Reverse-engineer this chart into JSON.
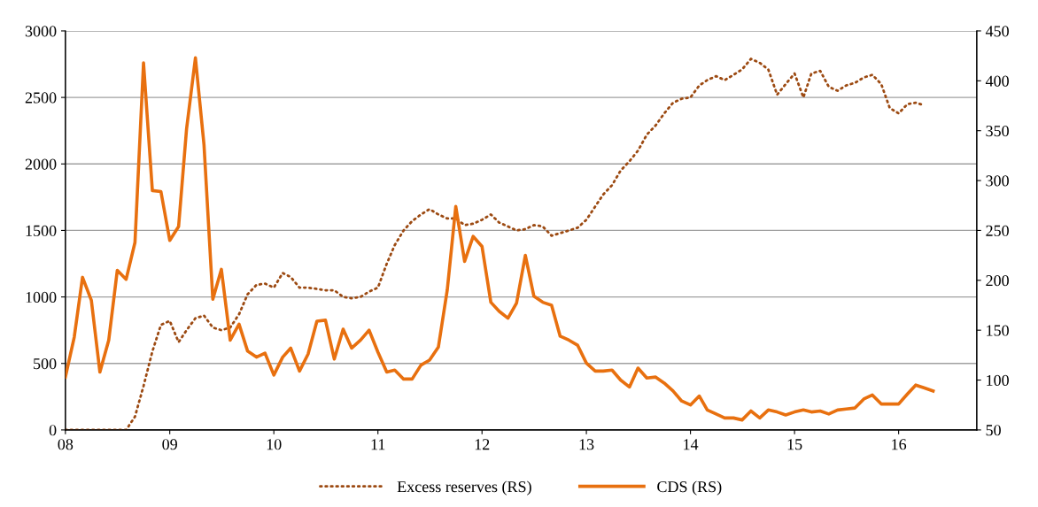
{
  "chart_data": {
    "type": "line",
    "x": [
      "2008-01",
      "2008-02",
      "2008-03",
      "2008-04",
      "2008-05",
      "2008-06",
      "2008-07",
      "2008-08",
      "2008-09",
      "2008-10",
      "2008-11",
      "2008-12",
      "2009-01",
      "2009-02",
      "2009-03",
      "2009-04",
      "2009-05",
      "2009-06",
      "2009-07",
      "2009-08",
      "2009-09",
      "2009-10",
      "2009-11",
      "2009-12",
      "2010-01",
      "2010-02",
      "2010-03",
      "2010-04",
      "2010-05",
      "2010-06",
      "2010-07",
      "2010-08",
      "2010-09",
      "2010-10",
      "2010-11",
      "2010-12",
      "2011-01",
      "2011-02",
      "2011-03",
      "2011-04",
      "2011-05",
      "2011-06",
      "2011-07",
      "2011-08",
      "2011-09",
      "2011-10",
      "2011-11",
      "2011-12",
      "2012-01",
      "2012-02",
      "2012-03",
      "2012-04",
      "2012-05",
      "2012-06",
      "2012-07",
      "2012-08",
      "2012-09",
      "2012-10",
      "2012-11",
      "2012-12",
      "2013-01",
      "2013-02",
      "2013-03",
      "2013-04",
      "2013-05",
      "2013-06",
      "2013-07",
      "2013-08",
      "2013-09",
      "2013-10",
      "2013-11",
      "2013-12",
      "2014-01",
      "2014-02",
      "2014-03",
      "2014-04",
      "2014-05",
      "2014-06",
      "2014-07",
      "2014-08",
      "2014-09",
      "2014-10",
      "2014-11",
      "2014-12",
      "2015-01",
      "2015-02",
      "2015-03",
      "2015-04",
      "2015-05",
      "2015-06",
      "2015-07",
      "2015-08",
      "2015-09",
      "2015-10",
      "2015-11",
      "2015-12",
      "2016-01",
      "2016-02",
      "2016-03",
      "2016-04",
      "2016-05"
    ],
    "series": [
      {
        "name": "Excess reserves (RS)",
        "color": "#9c4a12",
        "line_style": "dotted",
        "values": [
          0,
          0,
          0,
          0,
          0,
          0,
          0,
          0,
          100,
          330,
          590,
          790,
          820,
          660,
          750,
          840,
          860,
          770,
          750,
          770,
          870,
          1020,
          1090,
          1100,
          1070,
          1180,
          1150,
          1070,
          1070,
          1060,
          1050,
          1050,
          1000,
          990,
          1000,
          1040,
          1070,
          1250,
          1390,
          1500,
          1570,
          1620,
          1660,
          1620,
          1590,
          1590,
          1540,
          1550,
          1580,
          1620,
          1560,
          1530,
          1500,
          1510,
          1540,
          1530,
          1460,
          1480,
          1500,
          1520,
          1580,
          1680,
          1770,
          1840,
          1950,
          2020,
          2100,
          2220,
          2290,
          2380,
          2460,
          2490,
          2500,
          2590,
          2630,
          2660,
          2630,
          2670,
          2710,
          2790,
          2760,
          2710,
          2520,
          2600,
          2680,
          2500,
          2680,
          2700,
          2580,
          2550,
          2590,
          2610,
          2650,
          2670,
          2600,
          2420,
          2380,
          2450,
          2460,
          2440,
          null
        ]
      },
      {
        "name": "CDS (RS)",
        "color": "#e8700f",
        "line_style": "solid",
        "axis": "y2",
        "values": [
          103,
          143,
          203,
          180,
          108,
          140,
          210,
          201,
          238,
          418,
          290,
          289,
          240,
          254,
          352,
          423,
          336,
          181,
          211,
          140,
          156,
          129,
          123,
          127,
          105,
          123,
          132,
          109,
          126,
          159,
          160,
          121,
          151,
          132,
          140,
          150,
          128,
          108,
          110,
          101,
          101,
          115,
          120,
          133,
          190,
          274,
          219,
          244,
          234,
          178,
          169,
          162,
          177,
          225,
          184,
          178,
          175,
          144,
          140,
          135,
          117,
          109,
          109,
          110,
          100,
          93,
          112,
          102,
          103,
          97,
          89,
          79,
          75,
          84,
          70,
          66,
          62,
          62,
          60,
          69,
          62,
          70,
          68,
          65,
          68,
          70,
          68,
          69,
          66,
          70,
          71,
          72,
          81,
          85,
          76,
          76,
          76,
          86,
          95,
          92,
          89
        ]
      }
    ],
    "xlim": [
      "2008-01",
      "2016-10"
    ],
    "xticks": [
      {
        "value": "2008-01",
        "label": "08"
      },
      {
        "value": "2009-01",
        "label": "09"
      },
      {
        "value": "2010-01",
        "label": "10"
      },
      {
        "value": "2011-01",
        "label": "11"
      },
      {
        "value": "2012-01",
        "label": "12"
      },
      {
        "value": "2013-01",
        "label": "13"
      },
      {
        "value": "2014-01",
        "label": "14"
      },
      {
        "value": "2015-01",
        "label": "15"
      },
      {
        "value": "2016-01",
        "label": "16"
      }
    ],
    "ylim": [
      0,
      3000
    ],
    "yticks": [
      0,
      500,
      1000,
      1500,
      2000,
      2500,
      3000
    ],
    "y2lim": [
      50,
      450
    ],
    "y2ticks": [
      50,
      100,
      150,
      200,
      250,
      300,
      350,
      400,
      450
    ],
    "grid": "y",
    "legend": "bottom",
    "marker": "none"
  }
}
